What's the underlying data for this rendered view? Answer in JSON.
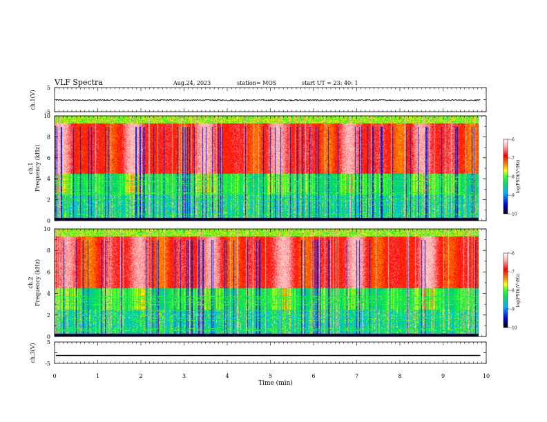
{
  "header": {
    "title": "VLF Spectra",
    "date": "Aug.24, 2023",
    "station": "station= MOS",
    "start": "start  UT  =   23: 40: 1"
  },
  "chart_data": [
    {
      "name": "ch1-waveform",
      "type": "line",
      "ylabel": "ch.1(V)",
      "ylim": [
        -5,
        5
      ],
      "ytick_labels": [
        "5",
        "-5"
      ],
      "xlim": [
        0,
        10
      ],
      "baseline_value": -0.2,
      "description_values": "noisy trace near -0.2 V"
    },
    {
      "name": "ch1-spectrogram",
      "type": "heatmap",
      "ylabel": "ch.1\nFrequency (kHz)",
      "ylim": [
        0,
        10
      ],
      "ytick_labels": [
        "0",
        "2",
        "4",
        "6",
        "8",
        "10"
      ],
      "xlim": [
        0,
        9.85
      ],
      "colorbar": {
        "label": "log(PSD)(V²/Hz)",
        "ticks": [
          "-6",
          "-7",
          "-8",
          "-9",
          "-10"
        ],
        "range": [
          -10,
          -6
        ]
      },
      "colors": [
        "#000000",
        "#1a1aff",
        "#00c8ff",
        "#00dd66",
        "#33ff33",
        "#ffff00",
        "#ff8800",
        "#ff0000",
        "#ffaaaa",
        "#ffffff"
      ]
    },
    {
      "name": "ch2-spectrogram",
      "type": "heatmap",
      "ylabel": "ch.2\nFrequency (kHz)",
      "ylim": [
        0,
        10
      ],
      "ytick_labels": [
        "0",
        "2",
        "4",
        "6",
        "8",
        "10"
      ],
      "xlim": [
        0,
        9.85
      ],
      "colorbar": {
        "label": "log(PSD)(V²/Hz)",
        "ticks": [
          "-6",
          "-7",
          "-8",
          "-9",
          "-10"
        ],
        "range": [
          -10,
          -6
        ]
      }
    },
    {
      "name": "ch3-waveform",
      "type": "line",
      "ylabel": "ch.3(V)",
      "ylim": [
        -5,
        5
      ],
      "ytick_labels": [
        "5",
        "-5"
      ],
      "xlim": [
        0,
        10
      ],
      "baseline_value": -1.3
    }
  ],
  "xaxis": {
    "label": "Time  (min)",
    "ticks": [
      0,
      1,
      2,
      3,
      4,
      5,
      6,
      7,
      8,
      9,
      10
    ],
    "tick_labels": [
      "0",
      "1",
      "2",
      "3",
      "4",
      "5",
      "6",
      "7",
      "8",
      "9",
      "10"
    ]
  }
}
